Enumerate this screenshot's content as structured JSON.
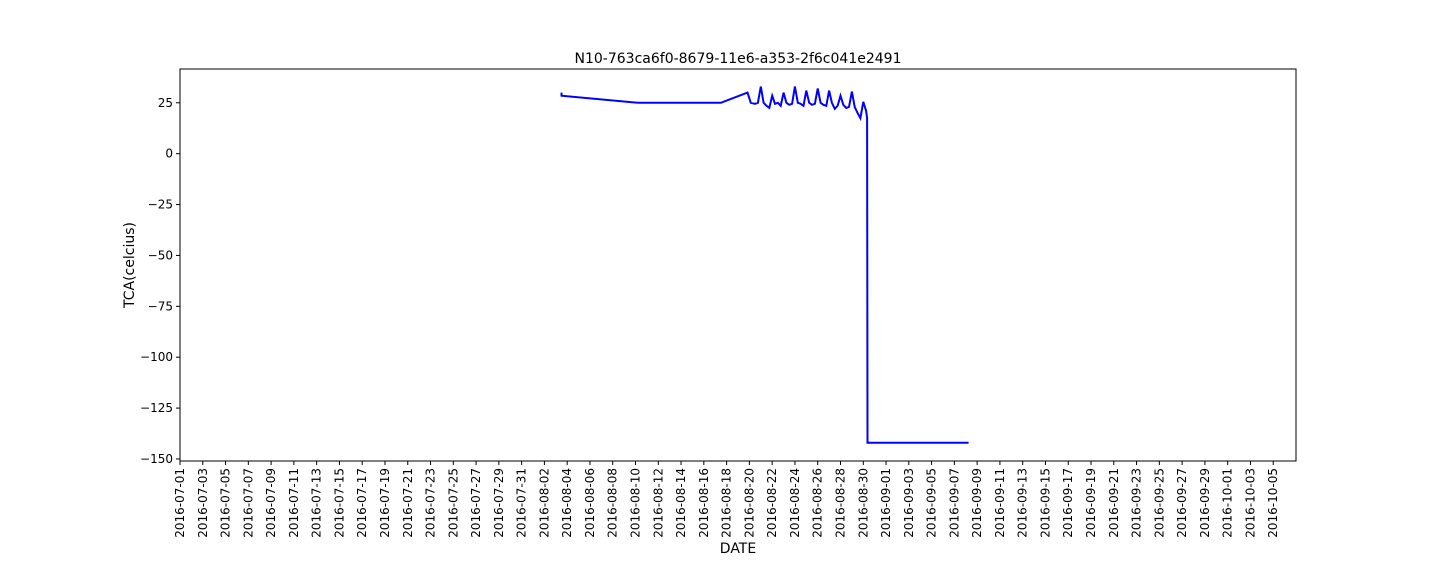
{
  "chart_data": {
    "type": "line",
    "title": "N10-763ca6f0-8679-11e6-a353-2f6c041e2491",
    "xlabel": "DATE",
    "ylabel": "TCA(celcius)",
    "x_range": [
      "2016-07-01",
      "2016-10-07"
    ],
    "ylim": [
      -151,
      41.6
    ],
    "grid": false,
    "legend": "none",
    "x_tick_labels": [
      "2016-07-01",
      "2016-07-03",
      "2016-07-05",
      "2016-07-07",
      "2016-07-09",
      "2016-07-11",
      "2016-07-13",
      "2016-07-15",
      "2016-07-17",
      "2016-07-19",
      "2016-07-21",
      "2016-07-23",
      "2016-07-25",
      "2016-07-27",
      "2016-07-29",
      "2016-07-31",
      "2016-08-02",
      "2016-08-04",
      "2016-08-06",
      "2016-08-08",
      "2016-08-10",
      "2016-08-12",
      "2016-08-14",
      "2016-08-16",
      "2016-08-18",
      "2016-08-20",
      "2016-08-22",
      "2016-08-24",
      "2016-08-26",
      "2016-08-28",
      "2016-08-30",
      "2016-09-01",
      "2016-09-03",
      "2016-09-05",
      "2016-09-07",
      "2016-09-09",
      "2016-09-11",
      "2016-09-13",
      "2016-09-15",
      "2016-09-17",
      "2016-09-19",
      "2016-09-21",
      "2016-09-23",
      "2016-09-25",
      "2016-09-27",
      "2016-09-29",
      "2016-10-01",
      "2016-10-03",
      "2016-10-05"
    ],
    "y_ticks": [
      25,
      0,
      -25,
      -50,
      -75,
      -100,
      -125,
      -150
    ],
    "y_tick_labels": [
      "25",
      "0",
      "−25",
      "−50",
      "−75",
      "−100",
      "−125",
      "−150"
    ],
    "series": [
      {
        "color": "#0000ff",
        "points": [
          [
            "2016-08-03 12:00",
            30
          ],
          [
            "2016-08-03 12:00",
            28.5
          ],
          [
            "2016-08-10 06:00",
            25
          ],
          [
            "2016-08-17 12:00",
            25
          ],
          [
            "2016-08-19 20:00",
            30
          ],
          [
            "2016-08-20 03:00",
            25
          ],
          [
            "2016-08-20 12:00",
            24.5
          ],
          [
            "2016-08-20 18:00",
            25
          ],
          [
            "2016-08-21 00:00",
            33
          ],
          [
            "2016-08-21 06:00",
            25
          ],
          [
            "2016-08-21 12:00",
            23.5
          ],
          [
            "2016-08-21 18:00",
            22.5
          ],
          [
            "2016-08-22 00:00",
            28.5
          ],
          [
            "2016-08-22 06:00",
            24.5
          ],
          [
            "2016-08-22 12:00",
            25
          ],
          [
            "2016-08-22 18:00",
            23.5
          ],
          [
            "2016-08-23 00:00",
            30
          ],
          [
            "2016-08-23 06:00",
            25
          ],
          [
            "2016-08-23 12:00",
            24
          ],
          [
            "2016-08-23 18:00",
            24.5
          ],
          [
            "2016-08-24 00:00",
            33
          ],
          [
            "2016-08-24 06:00",
            25
          ],
          [
            "2016-08-24 12:00",
            24.5
          ],
          [
            "2016-08-24 18:00",
            23.5
          ],
          [
            "2016-08-25 00:00",
            31
          ],
          [
            "2016-08-25 06:00",
            25
          ],
          [
            "2016-08-25 12:00",
            24
          ],
          [
            "2016-08-25 18:00",
            24.5
          ],
          [
            "2016-08-26 00:00",
            32
          ],
          [
            "2016-08-26 06:00",
            25
          ],
          [
            "2016-08-26 12:00",
            24
          ],
          [
            "2016-08-26 18:00",
            23.5
          ],
          [
            "2016-08-27 00:00",
            31
          ],
          [
            "2016-08-27 06:00",
            25
          ],
          [
            "2016-08-27 12:00",
            22
          ],
          [
            "2016-08-27 18:00",
            23.5
          ],
          [
            "2016-08-28 00:00",
            28.5
          ],
          [
            "2016-08-28 06:00",
            24
          ],
          [
            "2016-08-28 12:00",
            22.5
          ],
          [
            "2016-08-28 18:00",
            23
          ],
          [
            "2016-08-29 00:00",
            30.5
          ],
          [
            "2016-08-29 06:00",
            23
          ],
          [
            "2016-08-29 12:00",
            20
          ],
          [
            "2016-08-29 18:00",
            17.5
          ],
          [
            "2016-08-30 00:00",
            25.5
          ],
          [
            "2016-08-30 06:00",
            21
          ],
          [
            "2016-08-30 08:00",
            17.5
          ],
          [
            "2016-08-30 09:00",
            -142
          ],
          [
            "2016-09-08 06:00",
            -142
          ]
        ]
      }
    ]
  }
}
